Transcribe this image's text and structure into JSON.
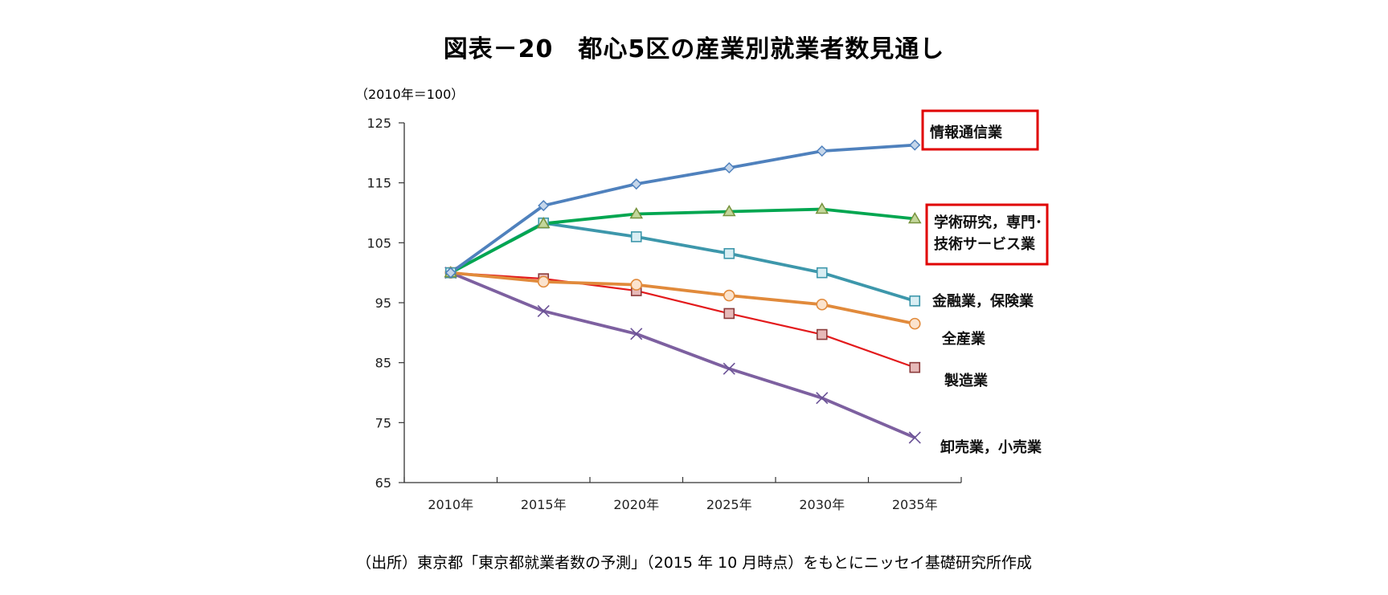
{
  "title": "図表－20　都心5区の産業別就業者数見通し",
  "unit_label": "（2010年＝100）",
  "source_note": "（出所）東京都「東京都就業者数の予測」（2015 年 10 月時点）をもとにニッセイ基礎研究所作成",
  "chart_data": {
    "type": "line",
    "x": [
      "2010年",
      "2015年",
      "2020年",
      "2025年",
      "2030年",
      "2035年"
    ],
    "ylim": [
      65,
      125
    ],
    "yticks": [
      65,
      75,
      85,
      95,
      105,
      115,
      125
    ],
    "grid": false,
    "series": [
      {
        "name": "情報通信業",
        "label_lines": [
          "情報通信業"
        ],
        "values": [
          100,
          111.2,
          114.8,
          117.5,
          120.3,
          121.3
        ],
        "color": "#4f81bd",
        "marker": "diamond",
        "marker_fill": "#c5d6ea",
        "highlight": true
      },
      {
        "name": "学術研究，専門・技術サービス業",
        "label_lines": [
          "学術研究，専門･",
          "技術サービス業"
        ],
        "values": [
          100,
          108.2,
          109.8,
          110.2,
          110.6,
          109.0
        ],
        "color": "#00a650",
        "marker": "triangle",
        "marker_fill": "#c3d69b",
        "highlight": true
      },
      {
        "name": "金融業，保険業",
        "label_lines": [
          "金融業，保険業"
        ],
        "values": [
          100,
          108.3,
          106.0,
          103.2,
          100.0,
          95.3
        ],
        "color": "#3d97ab",
        "marker": "square",
        "marker_fill": "#d9eef3",
        "highlight": false
      },
      {
        "name": "全産業",
        "label_lines": [
          "全産業"
        ],
        "values": [
          100,
          98.5,
          98.0,
          96.2,
          94.7,
          91.5
        ],
        "color": "#e18a3b",
        "marker": "circle",
        "marker_fill": "#fbe3cd",
        "highlight": false,
        "label_color": "#e00000"
      },
      {
        "name": "製造業",
        "label_lines": [
          "製造業"
        ],
        "values": [
          100,
          99.0,
          97.0,
          93.2,
          89.7,
          84.2
        ],
        "color": "#e31a1c",
        "marker": "square",
        "marker_fill": "#e6b9b8",
        "marker_stroke": "#8b3a3a",
        "highlight": false
      },
      {
        "name": "卸売業，小売業",
        "label_lines": [
          "卸売業，小売業"
        ],
        "values": [
          100,
          93.6,
          89.8,
          84.0,
          79.1,
          72.5
        ],
        "color": "#7d60a0",
        "marker": "x",
        "highlight": false
      }
    ]
  }
}
